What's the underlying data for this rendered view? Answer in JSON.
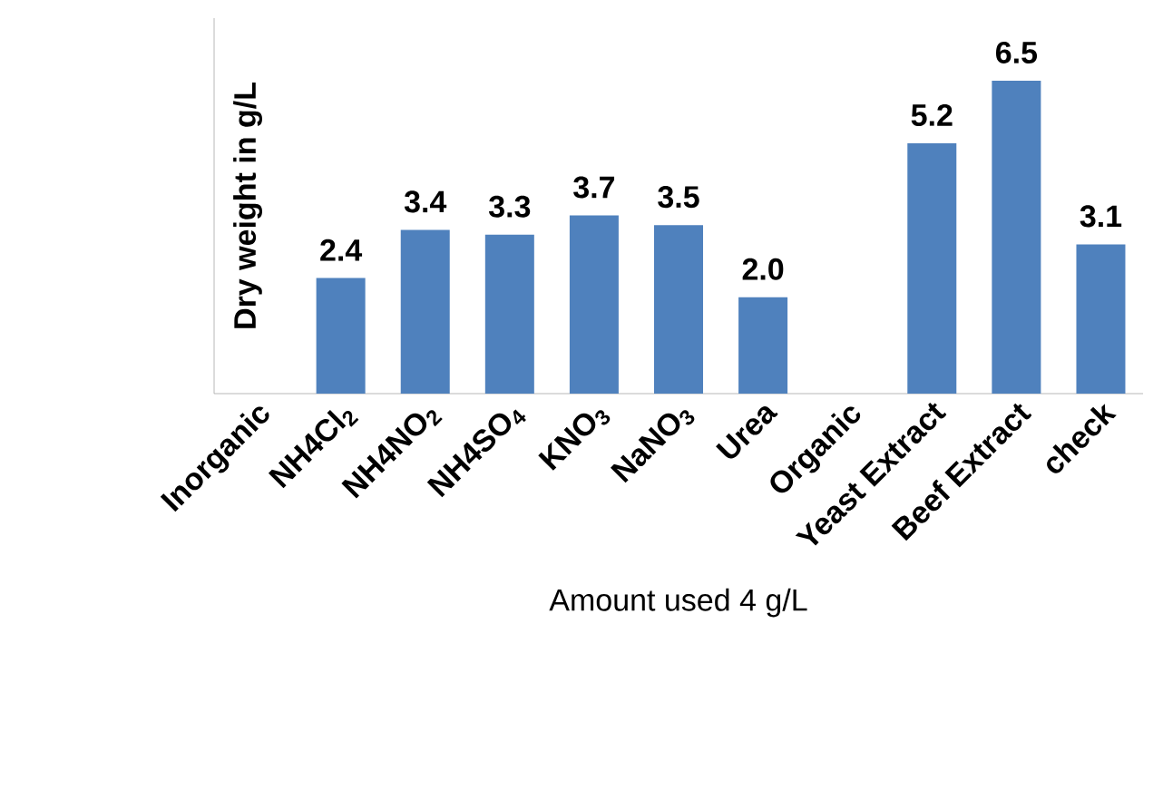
{
  "chart_data": {
    "type": "bar",
    "xlabel": "Amount used 4 g/L",
    "ylabel": "Dry weight in g/L",
    "categories": [
      "Inorganic",
      "NH4Cl$_{2}$",
      "NH4NO$_{2}$",
      "NH4SO$_{4}$",
      "KNO$_{3}$",
      "NaNO$_{3}$",
      "Urea",
      "Organic",
      "Yeast Extract",
      "Beef Extract",
      "check"
    ],
    "values": [
      null,
      2.4,
      3.4,
      3.3,
      3.7,
      3.5,
      2.0,
      null,
      5.2,
      6.5,
      3.1
    ],
    "value_labels": [
      null,
      "2.4",
      "3.4",
      "3.3",
      "3.7",
      "3.5",
      "2.0",
      null,
      "5.2",
      "6.5",
      "3.1"
    ],
    "color": "#4f81bd"
  }
}
